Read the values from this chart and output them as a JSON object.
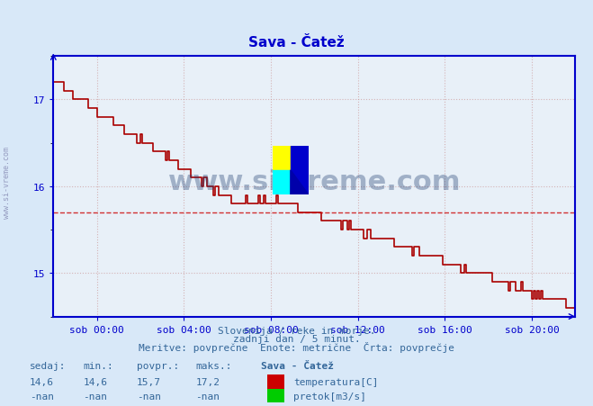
{
  "title": "Sava - Čatež",
  "bg_color": "#d8e8f8",
  "plot_bg_color": "#e8f0f8",
  "line_color": "#aa0000",
  "avg_line_color": "#cc0000",
  "avg_value": 15.7,
  "y_min": 14.5,
  "y_max": 17.5,
  "y_ticks": [
    15,
    16,
    17
  ],
  "x_tick_labels": [
    "sob 00:00",
    "sob 04:00",
    "sob 08:00",
    "sob 12:00",
    "sob 16:00",
    "sob 20:00"
  ],
  "x_tick_positions": [
    24,
    72,
    120,
    168,
    216,
    264
  ],
  "subtitle1": "Slovenija / reke in morje.",
  "subtitle2": "zadnji dan / 5 minut.",
  "subtitle3": "Meritve: povprečne  Enote: metrične  Črta: povprečje",
  "footer_col1_label": "sedaj:",
  "footer_col2_label": "min.:",
  "footer_col3_label": "povpr.:",
  "footer_col4_label": "maks.:",
  "footer_col5_label": "Sava - Čatež",
  "footer_val1": "14,6",
  "footer_val2": "14,6",
  "footer_val3": "15,7",
  "footer_val4": "17,2",
  "footer_row2_vals": [
    "-nan",
    "-nan",
    "-nan",
    "-nan"
  ],
  "legend_temp": "temperatura[C]",
  "legend_pretok": "pretok[m3/s]",
  "temp_color": "#cc0000",
  "pretok_color": "#00cc00",
  "watermark": "www.si-vreme.com",
  "axis_color": "#0000cc",
  "grid_color": "#cc9999",
  "text_color": "#336699",
  "title_color": "#0000cc",
  "n_points": 289
}
